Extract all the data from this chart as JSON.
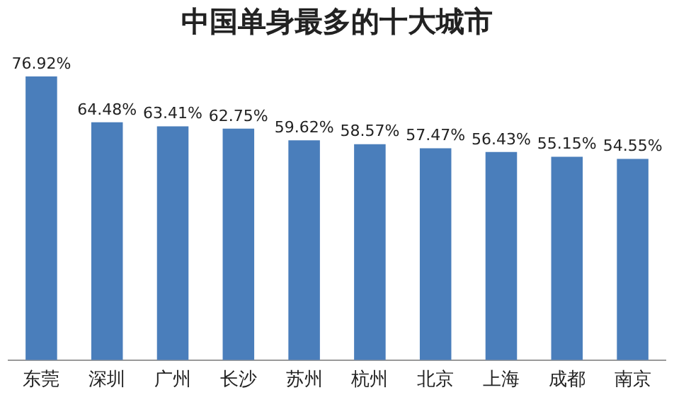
{
  "chart_data": {
    "type": "bar",
    "title": "中国单身最多的十大城市",
    "categories": [
      "东莞",
      "深圳",
      "广州",
      "长沙",
      "苏州",
      "杭州",
      "北京",
      "上海",
      "成都",
      "南京"
    ],
    "values": [
      76.92,
      64.48,
      63.41,
      62.75,
      59.62,
      58.57,
      57.47,
      56.43,
      55.15,
      54.55
    ],
    "value_labels": [
      "76.92%",
      "64.48%",
      "63.41%",
      "62.75%",
      "59.62%",
      "58.57%",
      "57.47%",
      "56.43%",
      "55.15%",
      "54.55%"
    ],
    "color": "#4a7ebb",
    "tick_labels": "x",
    "grid": false,
    "legend": false
  }
}
